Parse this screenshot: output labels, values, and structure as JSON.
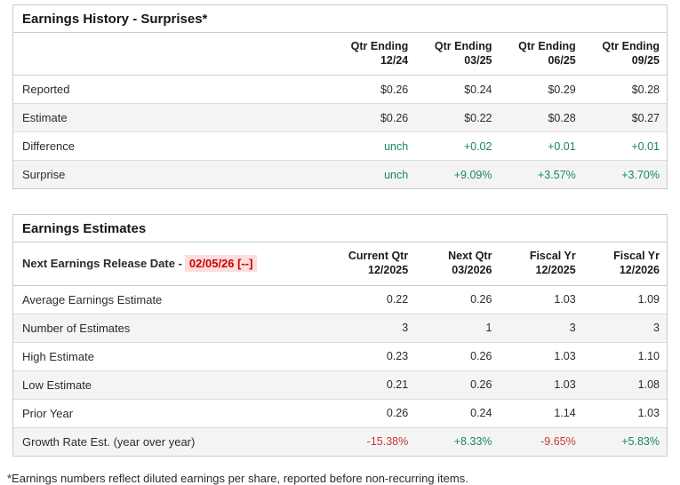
{
  "colors": {
    "positive_green": "#17866d",
    "negative_red": "#c43836",
    "release_date_red": "#cc0000",
    "release_date_bg": "#fcdede",
    "stripe_gray": "#f4f4f4",
    "border_gray": "#cbcbcb"
  },
  "history": {
    "title": "Earnings History - Surprises*",
    "columns": [
      {
        "line1": "Qtr Ending",
        "line2": "12/24"
      },
      {
        "line1": "Qtr Ending",
        "line2": "03/25"
      },
      {
        "line1": "Qtr Ending",
        "line2": "06/25"
      },
      {
        "line1": "Qtr Ending",
        "line2": "09/25"
      }
    ],
    "rows": [
      {
        "label": "Reported",
        "values": [
          "$0.26",
          "$0.24",
          "$0.29",
          "$0.28"
        ]
      },
      {
        "label": "Estimate",
        "values": [
          "$0.26",
          "$0.22",
          "$0.28",
          "$0.27"
        ]
      },
      {
        "label": "Difference",
        "values": [
          "unch",
          "+0.02",
          "+0.01",
          "+0.01"
        ]
      },
      {
        "label": "Surprise",
        "values": [
          "unch",
          "+9.09%",
          "+3.57%",
          "+3.70%"
        ]
      }
    ]
  },
  "estimates": {
    "title": "Earnings Estimates",
    "release_label": "Next Earnings Release Date -",
    "release_date": "02/05/26 [--]",
    "columns": [
      {
        "line1": "Current Qtr",
        "line2": "12/2025"
      },
      {
        "line1": "Next Qtr",
        "line2": "03/2026"
      },
      {
        "line1": "Fiscal Yr",
        "line2": "12/2025"
      },
      {
        "line1": "Fiscal Yr",
        "line2": "12/2026"
      }
    ],
    "rows": [
      {
        "label": "Average Earnings Estimate",
        "values": [
          "0.22",
          "0.26",
          "1.03",
          "1.09"
        ]
      },
      {
        "label": "Number of Estimates",
        "values": [
          "3",
          "1",
          "3",
          "3"
        ]
      },
      {
        "label": "High Estimate",
        "values": [
          "0.23",
          "0.26",
          "1.03",
          "1.10"
        ]
      },
      {
        "label": "Low Estimate",
        "values": [
          "0.21",
          "0.26",
          "1.03",
          "1.08"
        ]
      },
      {
        "label": "Prior Year",
        "values": [
          "0.26",
          "0.24",
          "1.14",
          "1.03"
        ]
      },
      {
        "label": "Growth Rate Est. (year over year)",
        "values": [
          "-15.38%",
          "+8.33%",
          "-9.65%",
          "+5.83%"
        ]
      }
    ]
  },
  "footnote": "*Earnings numbers reflect diluted earnings per share, reported before non-recurring items."
}
